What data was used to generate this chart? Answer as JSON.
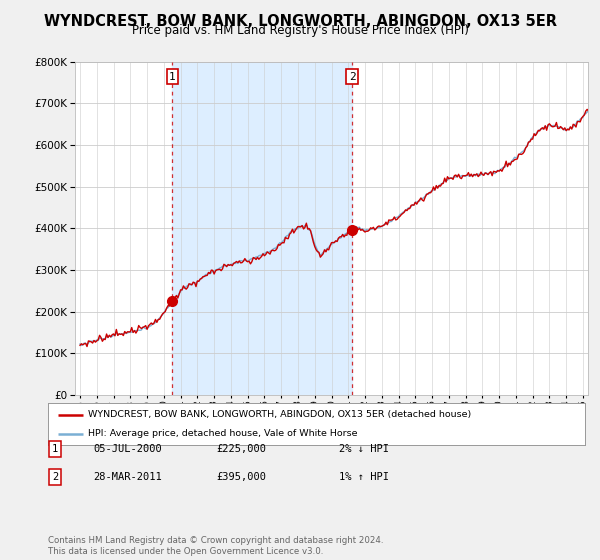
{
  "title": "WYNDCREST, BOW BANK, LONGWORTH, ABINGDON, OX13 5ER",
  "subtitle": "Price paid vs. HM Land Registry's House Price Index (HPI)",
  "hpi_legend": "HPI: Average price, detached house, Vale of White Horse",
  "prop_legend": "WYNDCREST, BOW BANK, LONGWORTH, ABINGDON, OX13 5ER (detached house)",
  "footer": "Contains HM Land Registry data © Crown copyright and database right 2024.\nThis data is licensed under the Open Government Licence v3.0.",
  "sale1_date": "05-JUL-2000",
  "sale1_price": "£225,000",
  "sale1_hpi": "2% ↓ HPI",
  "sale2_date": "28-MAR-2011",
  "sale2_price": "£395,000",
  "sale2_hpi": "1% ↑ HPI",
  "hpi_color": "#7aafd4",
  "prop_color": "#cc0000",
  "vline_color": "#cc0000",
  "shade_color": "#ddeeff",
  "sale1_x": 2000.51,
  "sale2_x": 2011.23,
  "sale1_y": 225000,
  "sale2_y": 395000,
  "ylim": [
    0,
    800000
  ],
  "yticks": [
    0,
    100000,
    200000,
    300000,
    400000,
    500000,
    600000,
    700000,
    800000
  ],
  "xlim": [
    1994.7,
    2025.3
  ],
  "background_color": "#f0f0f0",
  "plot_bg_color": "#ffffff",
  "grid_color": "#cccccc",
  "title_fontsize": 10.5,
  "subtitle_fontsize": 8.5
}
